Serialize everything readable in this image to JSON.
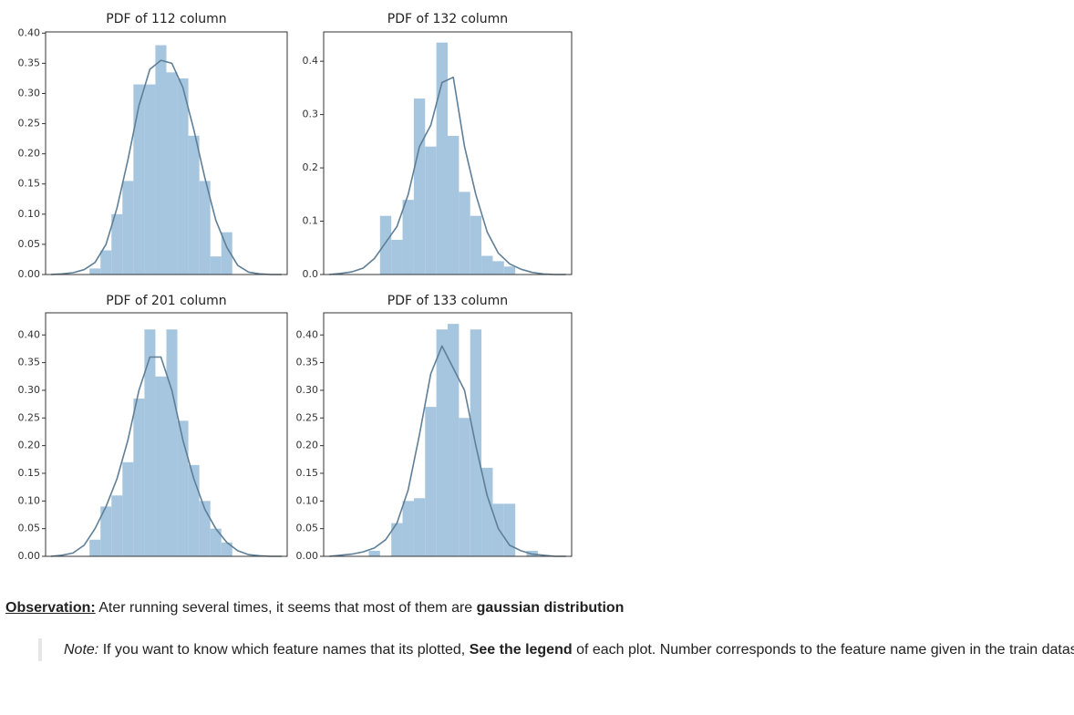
{
  "chart_data": [
    {
      "type": "bar",
      "title": "PDF of 112 column",
      "categories": [
        null,
        null,
        null,
        null,
        null,
        null,
        null,
        null,
        null,
        null,
        null,
        null,
        null,
        null,
        null,
        null,
        null,
        null,
        null,
        null,
        null,
        null
      ],
      "series": [
        {
          "type": "bar",
          "color": "#a6c6df",
          "values": [
            0,
            0,
            0,
            0,
            0.01,
            0.04,
            0.1,
            0.155,
            0.315,
            0.315,
            0.38,
            0.335,
            0.325,
            0.23,
            0.155,
            0.03,
            0.07,
            0,
            0,
            0,
            0,
            0
          ]
        },
        {
          "type": "line",
          "color": "#5f7f97",
          "values": [
            0,
            0.001,
            0.003,
            0.008,
            0.02,
            0.05,
            0.11,
            0.19,
            0.28,
            0.34,
            0.355,
            0.35,
            0.31,
            0.24,
            0.16,
            0.09,
            0.045,
            0.015,
            0.004,
            0.001,
            0,
            0
          ]
        }
      ],
      "ylim": [
        0,
        0.402
      ],
      "yticks": [
        {
          "value": 0,
          "label": "0.00"
        },
        {
          "value": 0.05,
          "label": "0.05"
        },
        {
          "value": 0.1,
          "label": "0.10"
        },
        {
          "value": 0.15,
          "label": "0.15"
        },
        {
          "value": 0.2,
          "label": "0.20"
        },
        {
          "value": 0.25,
          "label": "0.25"
        },
        {
          "value": 0.3,
          "label": "0.30"
        },
        {
          "value": 0.35,
          "label": "0.35"
        },
        {
          "value": 0.4,
          "label": "0.40"
        }
      ]
    },
    {
      "type": "bar",
      "title": "PDF of 132 column",
      "categories": [
        null,
        null,
        null,
        null,
        null,
        null,
        null,
        null,
        null,
        null,
        null,
        null,
        null,
        null,
        null,
        null,
        null,
        null,
        null,
        null,
        null,
        null
      ],
      "series": [
        {
          "type": "bar",
          "color": "#a6c6df",
          "values": [
            0,
            0,
            0,
            0,
            0,
            0.11,
            0.065,
            0.14,
            0.33,
            0.24,
            0.435,
            0.26,
            0.155,
            0.11,
            0.035,
            0.025,
            0.015,
            0,
            0,
            0,
            0,
            0
          ]
        },
        {
          "type": "line",
          "color": "#5f7f97",
          "values": [
            0,
            0.002,
            0.005,
            0.012,
            0.03,
            0.06,
            0.09,
            0.15,
            0.24,
            0.28,
            0.36,
            0.37,
            0.24,
            0.15,
            0.08,
            0.04,
            0.02,
            0.01,
            0.004,
            0.001,
            0,
            0
          ]
        }
      ],
      "ylim": [
        0,
        0.455
      ],
      "yticks": [
        {
          "value": 0,
          "label": "0.0"
        },
        {
          "value": 0.1,
          "label": "0.1"
        },
        {
          "value": 0.2,
          "label": "0.2"
        },
        {
          "value": 0.3,
          "label": "0.3"
        },
        {
          "value": 0.4,
          "label": "0.4"
        }
      ]
    },
    {
      "type": "bar",
      "title": "PDF of 201 column",
      "categories": [
        null,
        null,
        null,
        null,
        null,
        null,
        null,
        null,
        null,
        null,
        null,
        null,
        null,
        null,
        null,
        null,
        null,
        null,
        null,
        null,
        null,
        null
      ],
      "series": [
        {
          "type": "bar",
          "color": "#a6c6df",
          "values": [
            0,
            0,
            0,
            0,
            0.03,
            0.09,
            0.11,
            0.17,
            0.285,
            0.41,
            0.325,
            0.41,
            0.245,
            0.165,
            0.1,
            0.05,
            0.025,
            0,
            0,
            0,
            0,
            0
          ]
        },
        {
          "type": "line",
          "color": "#5f7f97",
          "values": [
            0,
            0.002,
            0.006,
            0.02,
            0.05,
            0.09,
            0.14,
            0.21,
            0.3,
            0.36,
            0.36,
            0.3,
            0.21,
            0.14,
            0.085,
            0.05,
            0.025,
            0.01,
            0.003,
            0.001,
            0,
            0
          ]
        }
      ],
      "ylim": [
        0,
        0.44
      ],
      "yticks": [
        {
          "value": 0,
          "label": "0.00"
        },
        {
          "value": 0.05,
          "label": "0.05"
        },
        {
          "value": 0.1,
          "label": "0.10"
        },
        {
          "value": 0.15,
          "label": "0.15"
        },
        {
          "value": 0.2,
          "label": "0.20"
        },
        {
          "value": 0.25,
          "label": "0.25"
        },
        {
          "value": 0.3,
          "label": "0.30"
        },
        {
          "value": 0.35,
          "label": "0.35"
        },
        {
          "value": 0.4,
          "label": "0.40"
        }
      ]
    },
    {
      "type": "bar",
      "title": "PDF of 133 column",
      "categories": [
        null,
        null,
        null,
        null,
        null,
        null,
        null,
        null,
        null,
        null,
        null,
        null,
        null,
        null,
        null,
        null,
        null,
        null,
        null,
        null,
        null,
        null
      ],
      "series": [
        {
          "type": "bar",
          "color": "#a6c6df",
          "values": [
            0,
            0,
            0,
            0,
            0.01,
            0,
            0.06,
            0.1,
            0.105,
            0.27,
            0.41,
            0.42,
            0.25,
            0.41,
            0.16,
            0.095,
            0.095,
            0,
            0.01,
            0,
            0,
            0
          ]
        },
        {
          "type": "line",
          "color": "#5f7f97",
          "values": [
            0,
            0.002,
            0.004,
            0.008,
            0.015,
            0.03,
            0.06,
            0.12,
            0.22,
            0.33,
            0.38,
            0.34,
            0.3,
            0.2,
            0.11,
            0.05,
            0.02,
            0.01,
            0.004,
            0.002,
            0,
            0
          ]
        }
      ],
      "ylim": [
        0,
        0.44
      ],
      "yticks": [
        {
          "value": 0,
          "label": "0.00"
        },
        {
          "value": 0.05,
          "label": "0.05"
        },
        {
          "value": 0.1,
          "label": "0.10"
        },
        {
          "value": 0.15,
          "label": "0.15"
        },
        {
          "value": 0.2,
          "label": "0.20"
        },
        {
          "value": 0.25,
          "label": "0.25"
        },
        {
          "value": 0.3,
          "label": "0.30"
        },
        {
          "value": 0.35,
          "label": "0.35"
        },
        {
          "value": 0.4,
          "label": "0.40"
        }
      ]
    }
  ],
  "observation": {
    "label": "Observation:",
    "text": "Ater running several times, it seems that most of them are",
    "bold": "gaussian distribution"
  },
  "note": {
    "label": "Note:",
    "text1": "If you want to know which feature names that its plotted,",
    "bold": "See the legend",
    "text2": "of each plot. Number corresponds to the feature name given in the train dataset."
  }
}
